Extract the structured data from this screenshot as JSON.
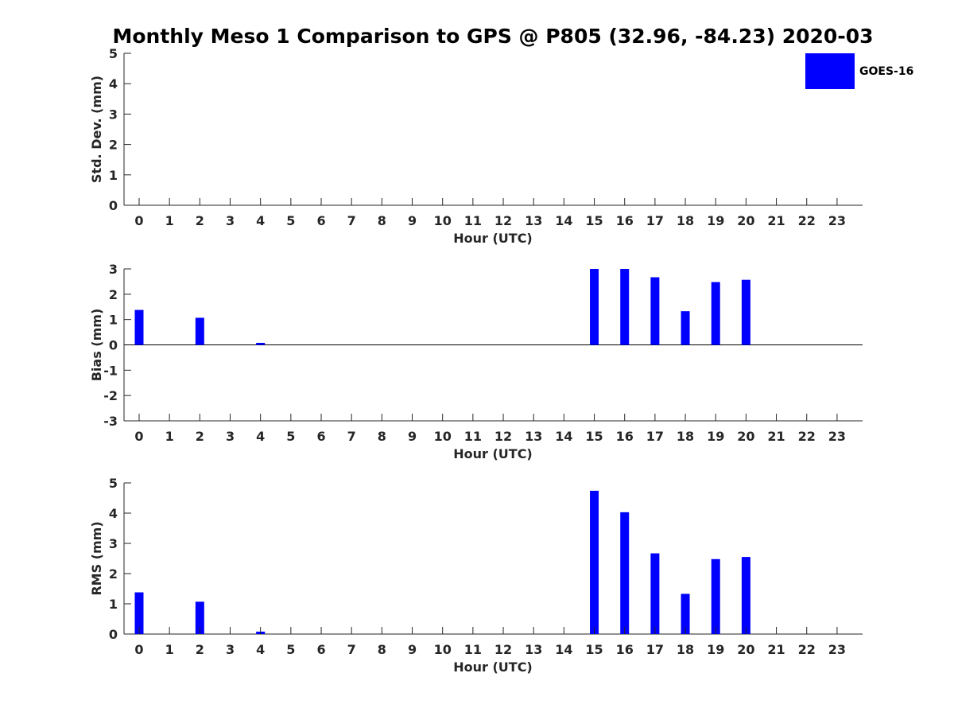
{
  "title": "Monthly Meso 1 Comparison to GPS @ P805 (32.96, -84.23) 2020-03",
  "legend": {
    "label": "GOES-16",
    "color": "#0000ff",
    "placement": "top-right"
  },
  "chart_data": [
    {
      "type": "bar",
      "xlabel": "Hour (UTC)",
      "ylabel": "Std. Dev. (mm)",
      "ylim": [
        0,
        5
      ],
      "yticks": [
        0,
        1,
        2,
        3,
        4,
        5
      ],
      "categories": [
        "0",
        "1",
        "2",
        "3",
        "4",
        "5",
        "6",
        "7",
        "8",
        "9",
        "10",
        "11",
        "12",
        "13",
        "14",
        "15",
        "16",
        "17",
        "18",
        "19",
        "20",
        "21",
        "22",
        "23"
      ],
      "series": [
        {
          "name": "GOES-16",
          "color": "#0000ff",
          "values": [
            0,
            0,
            0,
            0,
            0,
            0,
            0,
            0,
            0,
            0,
            0,
            0,
            0,
            0,
            0,
            0,
            0,
            0,
            0,
            0,
            0,
            0,
            0,
            0
          ]
        }
      ]
    },
    {
      "type": "bar",
      "xlabel": "Hour (UTC)",
      "ylabel": "Bias (mm)",
      "ylim": [
        -3,
        3
      ],
      "yticks": [
        -3,
        -2,
        -1,
        0,
        1,
        2,
        3
      ],
      "zero_line": true,
      "categories": [
        "0",
        "1",
        "2",
        "3",
        "4",
        "5",
        "6",
        "7",
        "8",
        "9",
        "10",
        "11",
        "12",
        "13",
        "14",
        "15",
        "16",
        "17",
        "18",
        "19",
        "20",
        "21",
        "22",
        "23"
      ],
      "series": [
        {
          "name": "GOES-16",
          "color": "#0000ff",
          "values": [
            1.38,
            0,
            1.07,
            0,
            0.08,
            0,
            0,
            0,
            0,
            0,
            0,
            0,
            0,
            0,
            0,
            3.0,
            3.0,
            2.67,
            1.33,
            2.48,
            2.57,
            0,
            0,
            0
          ]
        }
      ]
    },
    {
      "type": "bar",
      "xlabel": "Hour (UTC)",
      "ylabel": "RMS (mm)",
      "ylim": [
        0,
        5
      ],
      "yticks": [
        0,
        1,
        2,
        3,
        4,
        5
      ],
      "categories": [
        "0",
        "1",
        "2",
        "3",
        "4",
        "5",
        "6",
        "7",
        "8",
        "9",
        "10",
        "11",
        "12",
        "13",
        "14",
        "15",
        "16",
        "17",
        "18",
        "19",
        "20",
        "21",
        "22",
        "23"
      ],
      "series": [
        {
          "name": "GOES-16",
          "color": "#0000ff",
          "values": [
            1.38,
            0,
            1.07,
            0,
            0.08,
            0,
            0,
            0,
            0,
            0,
            0,
            0,
            0,
            0,
            0,
            4.74,
            4.03,
            2.67,
            1.33,
            2.48,
            2.55,
            0,
            0,
            0
          ]
        }
      ]
    }
  ]
}
